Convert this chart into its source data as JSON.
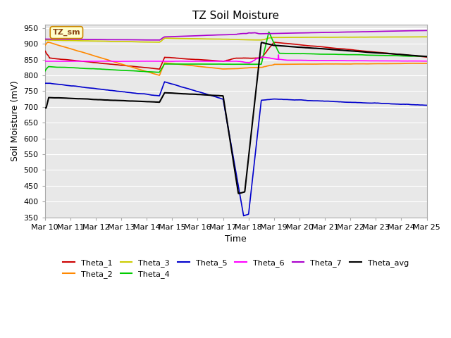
{
  "title": "TZ Soil Moisture",
  "xlabel": "Time",
  "ylabel": "Soil Moisture (mV)",
  "ylim": [
    350,
    960
  ],
  "yticks": [
    350,
    400,
    450,
    500,
    550,
    600,
    650,
    700,
    750,
    800,
    850,
    900,
    950
  ],
  "x_labels": [
    "Mar 10",
    "Mar 11",
    "Mar 12",
    "Mar 13",
    "Mar 14",
    "Mar 15",
    "Mar 16",
    "Mar 17",
    "Mar 18",
    "Mar 19",
    "Mar 20",
    "Mar 21",
    "Mar 22",
    "Mar 23",
    "Mar 24",
    "Mar 25"
  ],
  "bg_color": "#e8e8e8",
  "legend_label": "TZ_sm",
  "series_colors": {
    "Theta_1": "#cc0000",
    "Theta_2": "#ff8800",
    "Theta_3": "#cccc00",
    "Theta_4": "#00cc00",
    "Theta_5": "#0000cc",
    "Theta_6": "#ff00ff",
    "Theta_7": "#aa00cc",
    "Theta_avg": "#000000"
  }
}
